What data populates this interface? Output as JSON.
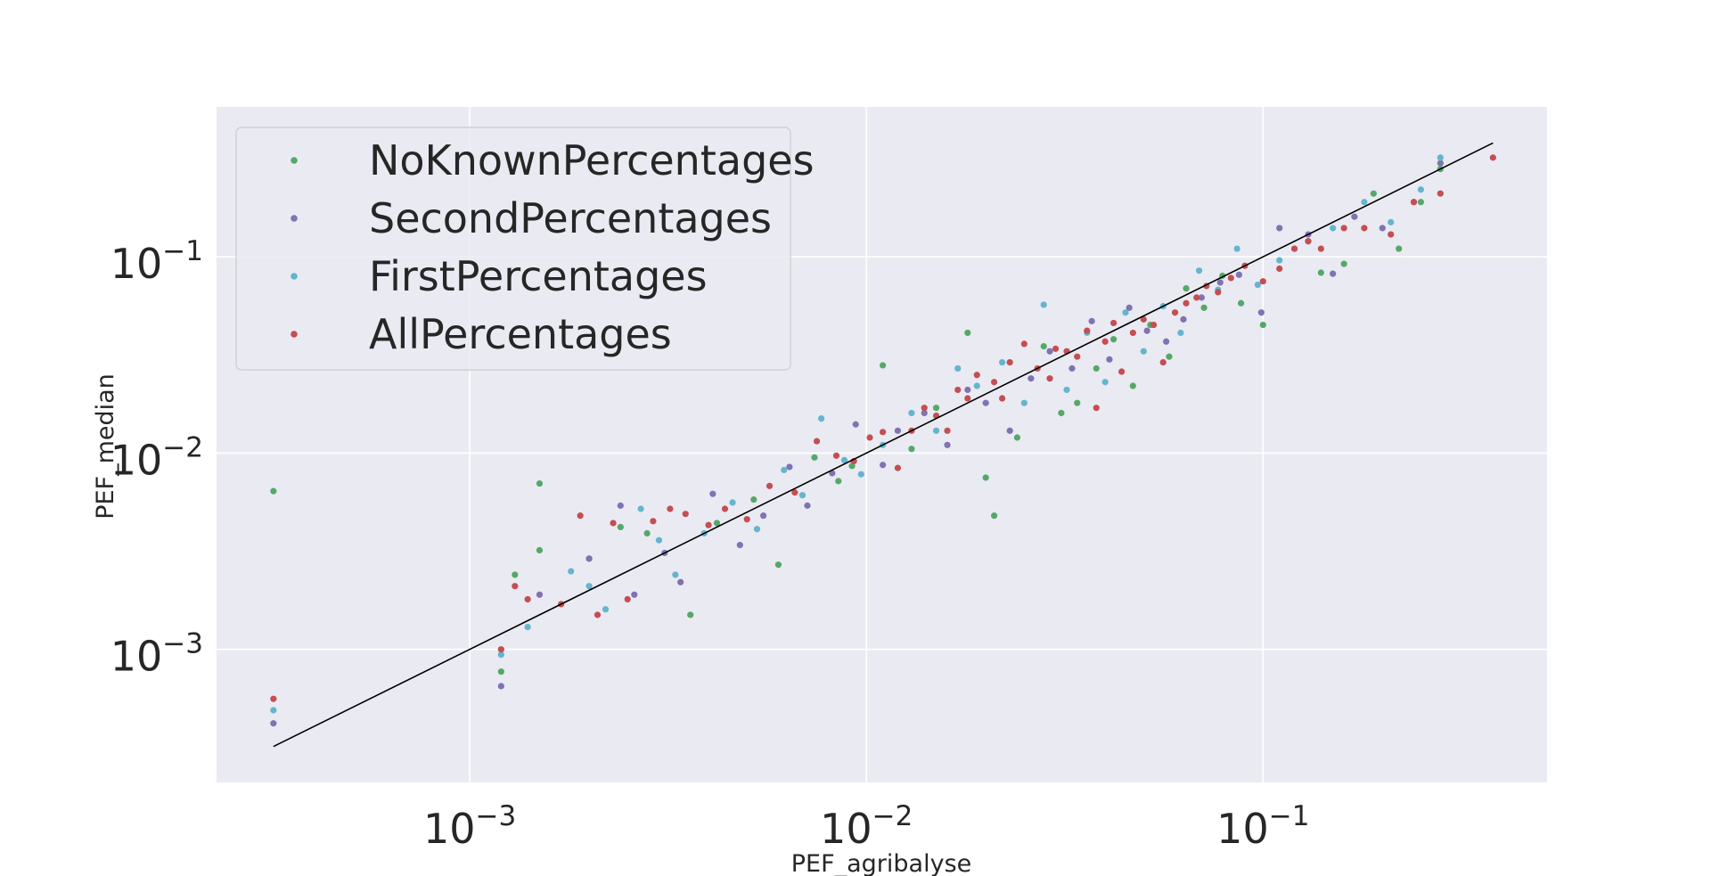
{
  "chart_data": {
    "type": "scatter",
    "title": "",
    "xlabel": "PEF_agribalyse",
    "ylabel": "PEF_median",
    "xscale": "log",
    "yscale": "log",
    "xlim": [
      0.00023,
      0.52
    ],
    "ylim": [
      0.00021,
      0.58
    ],
    "grid": true,
    "legend_position": "top-left",
    "x_ticks": [
      {
        "value": 0.001,
        "base": "10",
        "exp": "−3"
      },
      {
        "value": 0.01,
        "base": "10",
        "exp": "−2"
      },
      {
        "value": 0.1,
        "base": "10",
        "exp": "−1"
      }
    ],
    "y_ticks": [
      {
        "value": 0.001,
        "base": "10",
        "exp": "−3"
      },
      {
        "value": 0.01,
        "base": "10",
        "exp": "−2"
      },
      {
        "value": 0.1,
        "base": "10",
        "exp": "−1"
      }
    ],
    "reference_line": {
      "x": [
        0.00032,
        0.38
      ],
      "y": [
        0.00032,
        0.38
      ],
      "color": "#000000"
    },
    "series": [
      {
        "name": "NoKnownPercentages",
        "color": "#55a868",
        "x": [
          0.00032,
          0.0012,
          0.0013,
          0.0015,
          0.0015,
          0.002,
          0.0024,
          0.0028,
          0.0036,
          0.0042,
          0.0052,
          0.006,
          0.0074,
          0.0085,
          0.0092,
          0.011,
          0.013,
          0.015,
          0.018,
          0.02,
          0.021,
          0.024,
          0.028,
          0.031,
          0.034,
          0.038,
          0.042,
          0.047,
          0.052,
          0.058,
          0.064,
          0.071,
          0.079,
          0.088,
          0.1,
          0.12,
          0.14,
          0.16,
          0.19,
          0.22,
          0.25,
          0.28
        ],
        "y": [
          0.0064,
          0.00077,
          0.0024,
          0.007,
          0.0032,
          0.0029,
          0.0042,
          0.0039,
          0.0015,
          0.0044,
          0.0058,
          0.0027,
          0.0095,
          0.0072,
          0.0086,
          0.028,
          0.0105,
          0.017,
          0.041,
          0.0075,
          0.0048,
          0.012,
          0.035,
          0.016,
          0.018,
          0.027,
          0.038,
          0.022,
          0.045,
          0.031,
          0.069,
          0.055,
          0.08,
          0.058,
          0.045,
          0.11,
          0.083,
          0.092,
          0.21,
          0.11,
          0.19,
          0.28
        ]
      },
      {
        "name": "SecondPercentages",
        "color": "#8172b3",
        "x": [
          0.00032,
          0.0012,
          0.0015,
          0.002,
          0.0024,
          0.0026,
          0.0031,
          0.0034,
          0.0041,
          0.0048,
          0.0055,
          0.0064,
          0.0071,
          0.0082,
          0.0094,
          0.011,
          0.012,
          0.014,
          0.016,
          0.018,
          0.02,
          0.023,
          0.026,
          0.029,
          0.033,
          0.037,
          0.041,
          0.046,
          0.051,
          0.057,
          0.063,
          0.07,
          0.078,
          0.087,
          0.099,
          0.11,
          0.13,
          0.15,
          0.17,
          0.2,
          0.24,
          0.28
        ],
        "y": [
          0.00042,
          0.00065,
          0.0019,
          0.0029,
          0.0054,
          0.0019,
          0.0031,
          0.0022,
          0.0062,
          0.0034,
          0.0048,
          0.0085,
          0.0054,
          0.0079,
          0.014,
          0.0087,
          0.013,
          0.016,
          0.011,
          0.021,
          0.018,
          0.013,
          0.024,
          0.033,
          0.027,
          0.047,
          0.03,
          0.055,
          0.042,
          0.037,
          0.048,
          0.062,
          0.074,
          0.081,
          0.052,
          0.14,
          0.13,
          0.082,
          0.16,
          0.14,
          0.19,
          0.3
        ]
      },
      {
        "name": "FirstPercentages",
        "color": "#64b5cd",
        "x": [
          0.00032,
          0.0012,
          0.0014,
          0.0018,
          0.002,
          0.0022,
          0.0027,
          0.003,
          0.0033,
          0.0039,
          0.0046,
          0.0053,
          0.0062,
          0.0069,
          0.0077,
          0.0088,
          0.0097,
          0.011,
          0.013,
          0.015,
          0.017,
          0.019,
          0.022,
          0.025,
          0.028,
          0.032,
          0.036,
          0.04,
          0.045,
          0.05,
          0.056,
          0.062,
          0.069,
          0.077,
          0.086,
          0.097,
          0.11,
          0.13,
          0.15,
          0.18,
          0.21,
          0.25,
          0.28
        ],
        "y": [
          0.00049,
          0.00094,
          0.0013,
          0.0025,
          0.0021,
          0.0016,
          0.0052,
          0.0036,
          0.0024,
          0.0039,
          0.0056,
          0.0041,
          0.0082,
          0.0061,
          0.015,
          0.0092,
          0.0078,
          0.011,
          0.016,
          0.013,
          0.027,
          0.022,
          0.029,
          0.018,
          0.057,
          0.021,
          0.041,
          0.023,
          0.052,
          0.033,
          0.056,
          0.041,
          0.085,
          0.068,
          0.11,
          0.072,
          0.096,
          0.12,
          0.14,
          0.19,
          0.15,
          0.22,
          0.32
        ]
      },
      {
        "name": "AllPercentages",
        "color": "#c44e52",
        "x": [
          0.00032,
          0.0012,
          0.0013,
          0.0014,
          0.0017,
          0.0019,
          0.0021,
          0.0023,
          0.0025,
          0.0029,
          0.0032,
          0.0035,
          0.004,
          0.0044,
          0.005,
          0.0057,
          0.0066,
          0.0075,
          0.0084,
          0.0093,
          0.0102,
          0.011,
          0.012,
          0.013,
          0.014,
          0.015,
          0.016,
          0.017,
          0.018,
          0.019,
          0.021,
          0.022,
          0.023,
          0.025,
          0.027,
          0.029,
          0.03,
          0.032,
          0.034,
          0.036,
          0.038,
          0.04,
          0.042,
          0.044,
          0.047,
          0.05,
          0.053,
          0.056,
          0.06,
          0.064,
          0.068,
          0.072,
          0.077,
          0.083,
          0.09,
          0.1,
          0.11,
          0.12,
          0.13,
          0.14,
          0.16,
          0.18,
          0.21,
          0.24,
          0.28,
          0.38
        ],
        "y": [
          0.00056,
          0.001,
          0.0021,
          0.0018,
          0.0017,
          0.0048,
          0.0015,
          0.0044,
          0.0018,
          0.0045,
          0.0052,
          0.0049,
          0.0043,
          0.0052,
          0.0046,
          0.0068,
          0.0063,
          0.0115,
          0.0097,
          0.0091,
          0.012,
          0.0128,
          0.0084,
          0.013,
          0.017,
          0.0155,
          0.013,
          0.021,
          0.019,
          0.025,
          0.023,
          0.019,
          0.029,
          0.036,
          0.027,
          0.024,
          0.034,
          0.033,
          0.031,
          0.042,
          0.017,
          0.037,
          0.046,
          0.026,
          0.041,
          0.048,
          0.045,
          0.029,
          0.052,
          0.058,
          0.062,
          0.071,
          0.066,
          0.078,
          0.09,
          0.075,
          0.087,
          0.11,
          0.12,
          0.11,
          0.14,
          0.14,
          0.13,
          0.19,
          0.21,
          0.32
        ]
      }
    ]
  }
}
